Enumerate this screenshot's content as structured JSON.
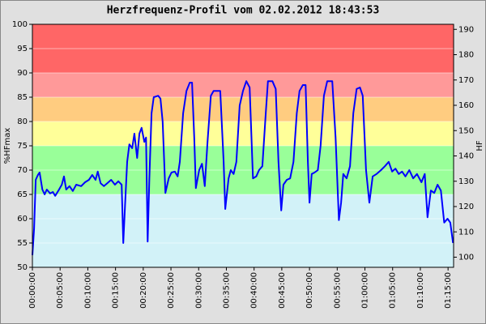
{
  "chart_data": {
    "type": "line",
    "title": "Herzfrequenz-Profil vom 02.02.2012 18:43:53",
    "y_label": "%HFmax",
    "y2_label": "HF",
    "x": [
      0,
      0.3,
      0.6,
      1.0,
      1.3,
      1.8,
      2.2,
      2.6,
      3.2,
      3.7,
      4.1,
      4.7,
      5.3,
      5.7,
      6.1,
      6.7,
      7.3,
      7.9,
      8.8,
      9.5,
      10.2,
      10.8,
      11.4,
      11.8,
      12.3,
      12.9,
      13.5,
      14.2,
      14.9,
      15.5,
      16.1,
      16.4,
      16.7,
      17.1,
      17.5,
      18.0,
      18.4,
      18.9,
      19.3,
      19.7,
      20.2,
      20.5,
      20.8,
      21.1,
      21.5,
      21.9,
      22.7,
      23.1,
      23.5,
      24.0,
      24.6,
      25.1,
      25.7,
      26.2,
      26.6,
      27.2,
      27.8,
      28.4,
      28.8,
      29.2,
      29.5,
      30.1,
      30.6,
      31.1,
      31.6,
      32.2,
      32.7,
      33.9,
      34.5,
      34.8,
      35.4,
      35.8,
      36.3,
      36.8,
      37.4,
      38.0,
      38.6,
      39.2,
      39.8,
      40.4,
      40.9,
      41.5,
      42.1,
      42.5,
      43.3,
      43.9,
      44.4,
      44.9,
      45.3,
      45.9,
      46.5,
      47.1,
      47.7,
      48.2,
      48.8,
      49.3,
      49.7,
      50.0,
      50.4,
      50.9,
      51.5,
      52.0,
      52.6,
      53.2,
      54.1,
      54.7,
      55.3,
      55.7,
      56.1,
      56.7,
      57.3,
      57.9,
      58.5,
      59.1,
      59.6,
      60.2,
      60.8,
      61.4,
      62.1,
      62.9,
      63.6,
      64.3,
      64.9,
      65.5,
      66.1,
      66.7,
      67.3,
      68.0,
      68.7,
      69.4,
      70.2,
      70.8,
      71.3,
      71.9,
      72.5,
      73.1,
      73.7,
      74.3,
      74.9,
      75.4,
      75.9
    ],
    "series": [
      {
        "name": "HF",
        "color": "#0000ff",
        "values": [
          52.5,
          58,
          68,
          69,
          69.5,
          66,
          65,
          66,
          65.2,
          65.5,
          64.7,
          65.8,
          67,
          68.7,
          66,
          66.7,
          65.7,
          67,
          66.7,
          67.5,
          68,
          69,
          68,
          69.7,
          67.3,
          66.7,
          67.3,
          68,
          67,
          67.7,
          67,
          55,
          62.5,
          71.7,
          75.3,
          74.5,
          77.5,
          72.5,
          77.5,
          78.7,
          75.8,
          76.7,
          55.3,
          68.3,
          81.7,
          85,
          85.3,
          84.7,
          80,
          65.3,
          68.3,
          69.5,
          69.7,
          68.7,
          71.7,
          81.7,
          86.3,
          88,
          88,
          76.7,
          66.3,
          70,
          71.3,
          66.7,
          75.8,
          85.3,
          86.3,
          86.3,
          71.7,
          62,
          68.3,
          70,
          69.2,
          71.7,
          83.3,
          86.3,
          88.3,
          87,
          68.3,
          68.7,
          70,
          70.8,
          81.7,
          88.3,
          88.3,
          86.7,
          71.7,
          61.7,
          67,
          68,
          68.3,
          71.7,
          81.7,
          86.3,
          87.5,
          87.5,
          71.7,
          63.3,
          69.2,
          69.5,
          70,
          75,
          85.3,
          88.3,
          88.3,
          76.7,
          59.7,
          63.3,
          69.2,
          68.3,
          70.8,
          81.7,
          86.7,
          87,
          85.3,
          70,
          63.3,
          68.7,
          69.2,
          70,
          70.8,
          71.7,
          69.7,
          70.3,
          69.2,
          69.7,
          68.7,
          70,
          68.3,
          69.2,
          67.5,
          69.2,
          60.3,
          65.8,
          65.3,
          67,
          65.8,
          59.2,
          60,
          59.2,
          55
        ]
      }
    ],
    "xlim": [
      0,
      76
    ],
    "xticks": [
      {
        "value": 0,
        "label": "00:00:00"
      },
      {
        "value": 5,
        "label": "00:05:00"
      },
      {
        "value": 10,
        "label": "00:10:00"
      },
      {
        "value": 15,
        "label": "00:15:00"
      },
      {
        "value": 20,
        "label": "00:20:00"
      },
      {
        "value": 25,
        "label": "00:25:00"
      },
      {
        "value": 30,
        "label": "00:30:00"
      },
      {
        "value": 35,
        "label": "00:35:00"
      },
      {
        "value": 40,
        "label": "00:40:00"
      },
      {
        "value": 45,
        "label": "00:45:00"
      },
      {
        "value": 50,
        "label": "00:50:00"
      },
      {
        "value": 55,
        "label": "00:55:00"
      },
      {
        "value": 60,
        "label": "01:00:00"
      },
      {
        "value": 65,
        "label": "01:05:00"
      },
      {
        "value": 70,
        "label": "01:10:00"
      },
      {
        "value": 75,
        "label": "01:15:00"
      }
    ],
    "ylim": [
      50,
      100
    ],
    "yticks": [
      50,
      55,
      60,
      65,
      70,
      75,
      80,
      85,
      90,
      95,
      100
    ],
    "y2lim": [
      96,
      192
    ],
    "y2ticks": [
      100,
      110,
      120,
      130,
      140,
      150,
      160,
      170,
      180,
      190
    ],
    "zones": [
      {
        "from": 50,
        "to": 65,
        "color": "#d2f2f8"
      },
      {
        "from": 65,
        "to": 75,
        "color": "#99ff99"
      },
      {
        "from": 75,
        "to": 80,
        "color": "#ffff99"
      },
      {
        "from": 80,
        "to": 85,
        "color": "#ffcc80"
      },
      {
        "from": 85,
        "to": 90,
        "color": "#ff9999"
      },
      {
        "from": 90,
        "to": 100,
        "color": "#ff6666"
      }
    ],
    "grid": true
  }
}
